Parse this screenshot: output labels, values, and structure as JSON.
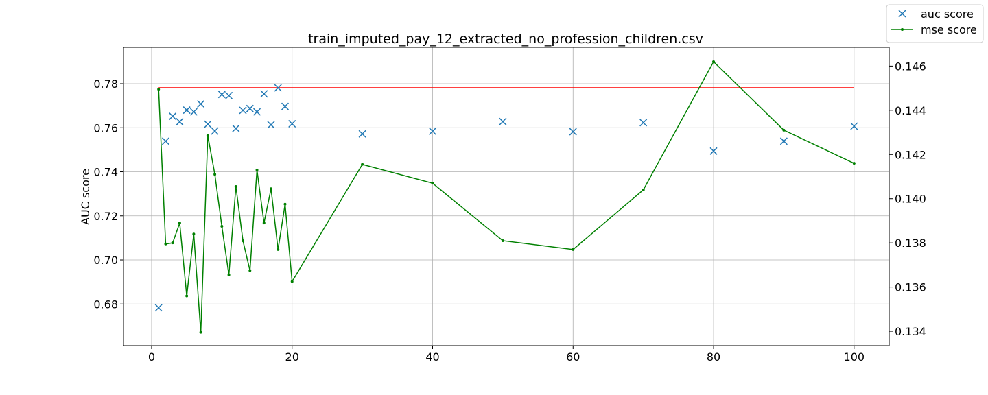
{
  "chart_data": {
    "type": "scatter",
    "title": "train_imputed_pay_12_extracted_no_profession_children.csv",
    "xlabel": "",
    "ylabel": "AUC score",
    "y2label": "",
    "xlim": [
      -4,
      105
    ],
    "ylim": [
      0.6611,
      0.7965
    ],
    "y2lim": [
      0.13335,
      0.14685
    ],
    "xticks": [
      0,
      20,
      40,
      60,
      80,
      100
    ],
    "yticks": [
      0.68,
      0.7,
      0.72,
      0.74,
      0.76,
      0.78
    ],
    "y2ticks": [
      0.134,
      0.136,
      0.138,
      0.14,
      0.142,
      0.144,
      0.146
    ],
    "ytick_labels": [
      "0.68",
      "0.70",
      "0.72",
      "0.74",
      "0.76",
      "0.78"
    ],
    "y2tick_labels": [
      "0.134",
      "0.136",
      "0.138",
      "0.140",
      "0.142",
      "0.144",
      "0.146"
    ],
    "grid": true,
    "legend_position": "top-right",
    "series": [
      {
        "name": "auc score",
        "axis": "left",
        "kind": "scatter",
        "marker": "x",
        "color": "#1f77b4",
        "x": [
          1,
          2,
          3,
          4,
          5,
          6,
          7,
          8,
          9,
          10,
          11,
          12,
          13,
          14,
          15,
          16,
          17,
          18,
          19,
          20,
          30,
          40,
          50,
          60,
          70,
          80,
          90,
          100
        ],
        "y": [
          0.6783,
          0.7539,
          0.7652,
          0.7627,
          0.768,
          0.7672,
          0.7708,
          0.7616,
          0.7585,
          0.7751,
          0.7746,
          0.7597,
          0.7679,
          0.7687,
          0.7672,
          0.7754,
          0.7613,
          0.7781,
          0.7697,
          0.7618,
          0.7572,
          0.7584,
          0.7628,
          0.7582,
          0.7623,
          0.7494,
          0.7539,
          0.7607
        ]
      },
      {
        "name": "mse score",
        "axis": "right",
        "kind": "line",
        "marker": "dot",
        "color": "#008000",
        "x": [
          1,
          2,
          3,
          4,
          5,
          6,
          7,
          8,
          9,
          10,
          11,
          12,
          13,
          14,
          15,
          16,
          17,
          18,
          19,
          20,
          30,
          40,
          50,
          60,
          70,
          80,
          90,
          100
        ],
        "y": [
          0.14495,
          0.13795,
          0.138,
          0.1389,
          0.1356,
          0.1384,
          0.13395,
          0.14285,
          0.1411,
          0.13875,
          0.13655,
          0.14055,
          0.1381,
          0.13675,
          0.1413,
          0.1389,
          0.14045,
          0.1377,
          0.13975,
          0.13625,
          0.14155,
          0.1407,
          0.1381,
          0.1377,
          0.1404,
          0.1462,
          0.1431,
          0.1416
        ]
      },
      {
        "name": "",
        "axis": "left",
        "kind": "hline",
        "color": "#ff0000",
        "x": [
          1,
          100
        ],
        "y": [
          0.7781,
          0.7781
        ]
      }
    ]
  }
}
